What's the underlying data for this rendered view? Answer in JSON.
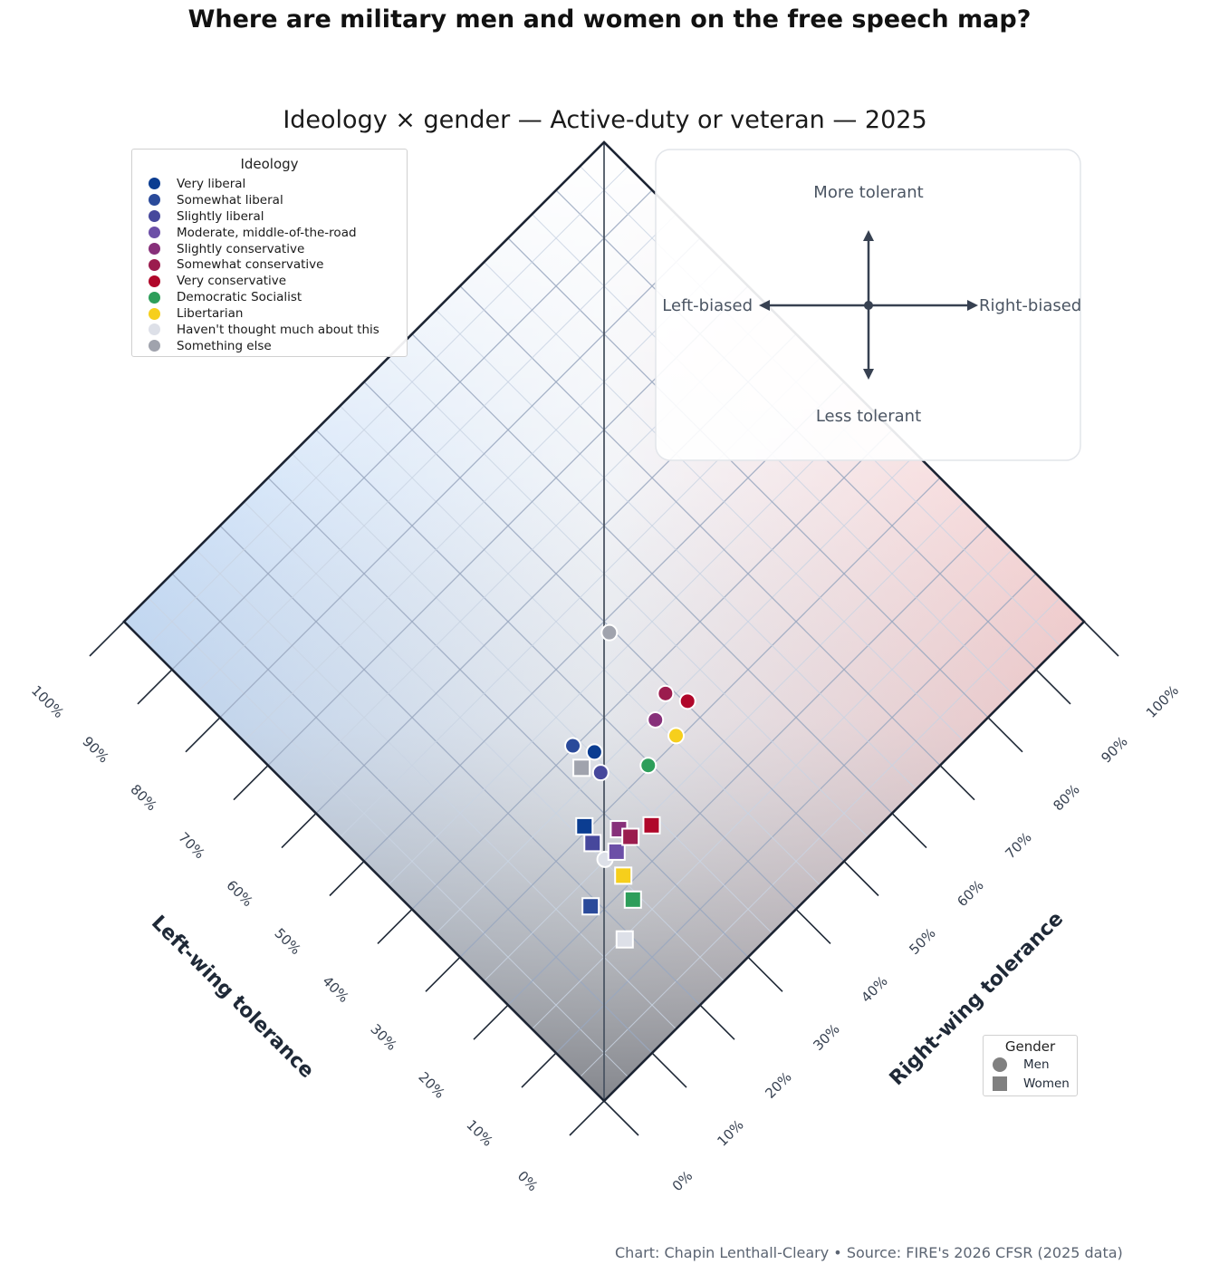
{
  "title": "Where are military men and women on the free speech map?",
  "subtitle": "Ideology × gender — Active-duty or veteran — 2025",
  "source": "Chart: Chapin Lenthall-Cleary • Source: FIRE's 2026 CFSR (2025 data)",
  "colors": {
    "background_left": "#bcd7f7",
    "background_right": "#f7c9c9",
    "background_bottom": "#8d8f94",
    "grid": "#9aa8bf",
    "frame": "#1c2433"
  },
  "orientation_key": {
    "top": "More tolerant",
    "bottom": "Less tolerant",
    "left": "Left-biased",
    "right": "Right-biased"
  },
  "legend": {
    "title": "Ideology",
    "items": [
      {
        "label": "Very liberal",
        "color": "#0b3d91"
      },
      {
        "label": "Somewhat liberal",
        "color": "#2a4a9a"
      },
      {
        "label": "Slightly liberal",
        "color": "#47489c"
      },
      {
        "label": "Moderate, middle-of-the-road",
        "color": "#6c4fa7"
      },
      {
        "label": "Slightly conservative",
        "color": "#87307a"
      },
      {
        "label": "Somewhat conservative",
        "color": "#9b1c4e"
      },
      {
        "label": "Very conservative",
        "color": "#b0072a"
      },
      {
        "label": "Democratic Socialist",
        "color": "#2d9e5a"
      },
      {
        "label": "Libertarian",
        "color": "#f6cf1c"
      },
      {
        "label": "Haven't thought much about this",
        "color": "#dde0e8"
      },
      {
        "label": "Something else",
        "color": "#a0a3ad"
      }
    ]
  },
  "gender_legend": {
    "title": "Gender",
    "men": "Men",
    "women": "Women"
  },
  "chart_data": {
    "type": "scatter",
    "title": "Ideology × gender — Active-duty or veteran — 2025",
    "xlabel": "Left-wing tolerance",
    "ylabel": "Right-wing tolerance",
    "xlim": [
      0,
      100
    ],
    "ylim": [
      0,
      100
    ],
    "ticks": [
      "0%",
      "10%",
      "20%",
      "30%",
      "40%",
      "50%",
      "60%",
      "70%",
      "80%",
      "90%",
      "100%"
    ],
    "points": [
      {
        "ideology": "Very liberal",
        "gender": "Men",
        "left": 37.4,
        "right": 35.4
      },
      {
        "ideology": "Somewhat liberal",
        "gender": "Men",
        "left": 40.3,
        "right": 33.8
      },
      {
        "ideology": "Slightly liberal",
        "gender": "Men",
        "left": 34.6,
        "right": 33.9
      },
      {
        "ideology": "Slightly conservative",
        "gender": "Men",
        "left": 34.4,
        "right": 45.1
      },
      {
        "ideology": "Somewhat conservative",
        "gender": "Men",
        "left": 36.1,
        "right": 48.9
      },
      {
        "ideology": "Very conservative",
        "gender": "Men",
        "left": 33.0,
        "right": 50.4
      },
      {
        "ideology": "Democratic Socialist",
        "gender": "Men",
        "left": 30.4,
        "right": 39.6
      },
      {
        "ideology": "Libertarian",
        "gender": "Men",
        "left": 30.6,
        "right": 45.6
      },
      {
        "ideology": "Haven't thought much about this",
        "gender": "Men",
        "left": 25.1,
        "right": 25.3
      },
      {
        "ideology": "Something else",
        "gender": "Men",
        "left": 48.3,
        "right": 49.4
      },
      {
        "ideology": "Very liberal",
        "gender": "Women",
        "left": 30.7,
        "right": 26.6
      },
      {
        "ideology": "Somewhat liberal",
        "gender": "Women",
        "left": 21.7,
        "right": 18.9
      },
      {
        "ideology": "Slightly liberal",
        "gender": "Women",
        "left": 28.1,
        "right": 25.7
      },
      {
        "ideology": "Moderate, middle-of-the-road",
        "gender": "Women",
        "left": 24.7,
        "right": 27.3
      },
      {
        "ideology": "Slightly conservative",
        "gender": "Women",
        "left": 26.8,
        "right": 29.9
      },
      {
        "ideology": "Somewhat conservative",
        "gender": "Women",
        "left": 24.8,
        "right": 30.3
      },
      {
        "ideology": "Very conservative",
        "gender": "Women",
        "left": 23.8,
        "right": 33.7
      },
      {
        "ideology": "Democratic Socialist",
        "gender": "Women",
        "left": 18.0,
        "right": 24.0
      },
      {
        "ideology": "Libertarian",
        "gender": "Women",
        "left": 21.5,
        "right": 25.5
      },
      {
        "ideology": "Haven't thought much about this",
        "gender": "Women",
        "left": 14.7,
        "right": 19.0
      },
      {
        "ideology": "Something else",
        "gender": "Women",
        "left": 37.1,
        "right": 32.4
      }
    ]
  }
}
